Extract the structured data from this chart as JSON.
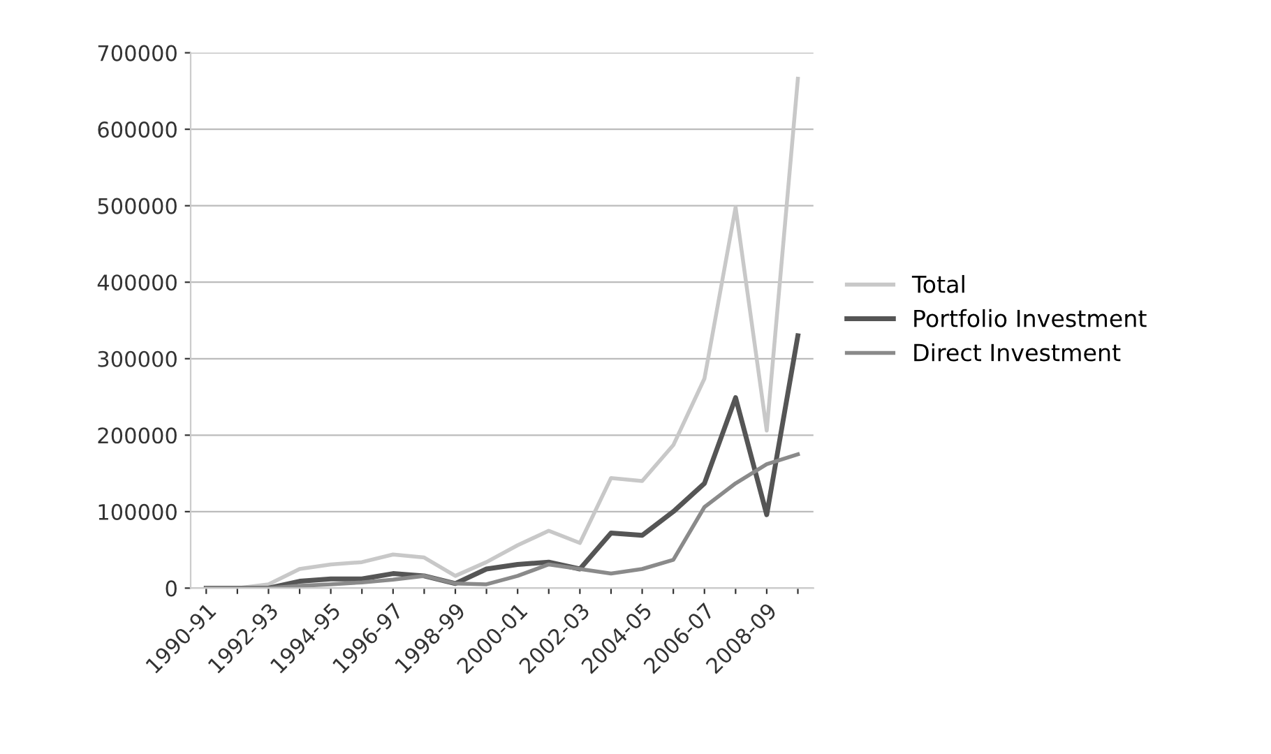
{
  "chart_data": {
    "type": "line",
    "categories": [
      "1990-91",
      null,
      "1992-93",
      null,
      "1994-95",
      null,
      "1996-97",
      null,
      "1998-99",
      null,
      "2000-01",
      null,
      "2002-03",
      null,
      "2004-05",
      null,
      "2006-07",
      null,
      "2008-09",
      null
    ],
    "series": [
      {
        "name": "Total",
        "color": "#c8c8c8",
        "values": [
          0,
          0,
          5000,
          25000,
          31000,
          34000,
          44000,
          40000,
          16000,
          34000,
          56000,
          75000,
          59000,
          144000,
          140000,
          187000,
          274000,
          498000,
          206000,
          666000
        ]
      },
      {
        "name": "Portfolio Investment",
        "color": "#555555",
        "values": [
          0,
          0,
          0,
          9000,
          12000,
          12000,
          19000,
          16000,
          6000,
          25000,
          31000,
          34000,
          25000,
          72000,
          69000,
          100000,
          137000,
          249000,
          96000,
          330000
        ]
      },
      {
        "name": "Direct Investment",
        "color": "#8a8a8a",
        "values": [
          0,
          0,
          0,
          3000,
          5000,
          7500,
          11000,
          16000,
          6000,
          5000,
          16000,
          31000,
          25000,
          19000,
          25000,
          37000,
          106000,
          137000,
          162000,
          175000
        ]
      }
    ],
    "ylim": [
      0,
      700000
    ],
    "yticks": [
      0,
      100000,
      200000,
      300000,
      400000,
      500000,
      600000,
      700000
    ],
    "grid": "y",
    "legend": "right",
    "marker": "none",
    "line_style": "solid"
  }
}
